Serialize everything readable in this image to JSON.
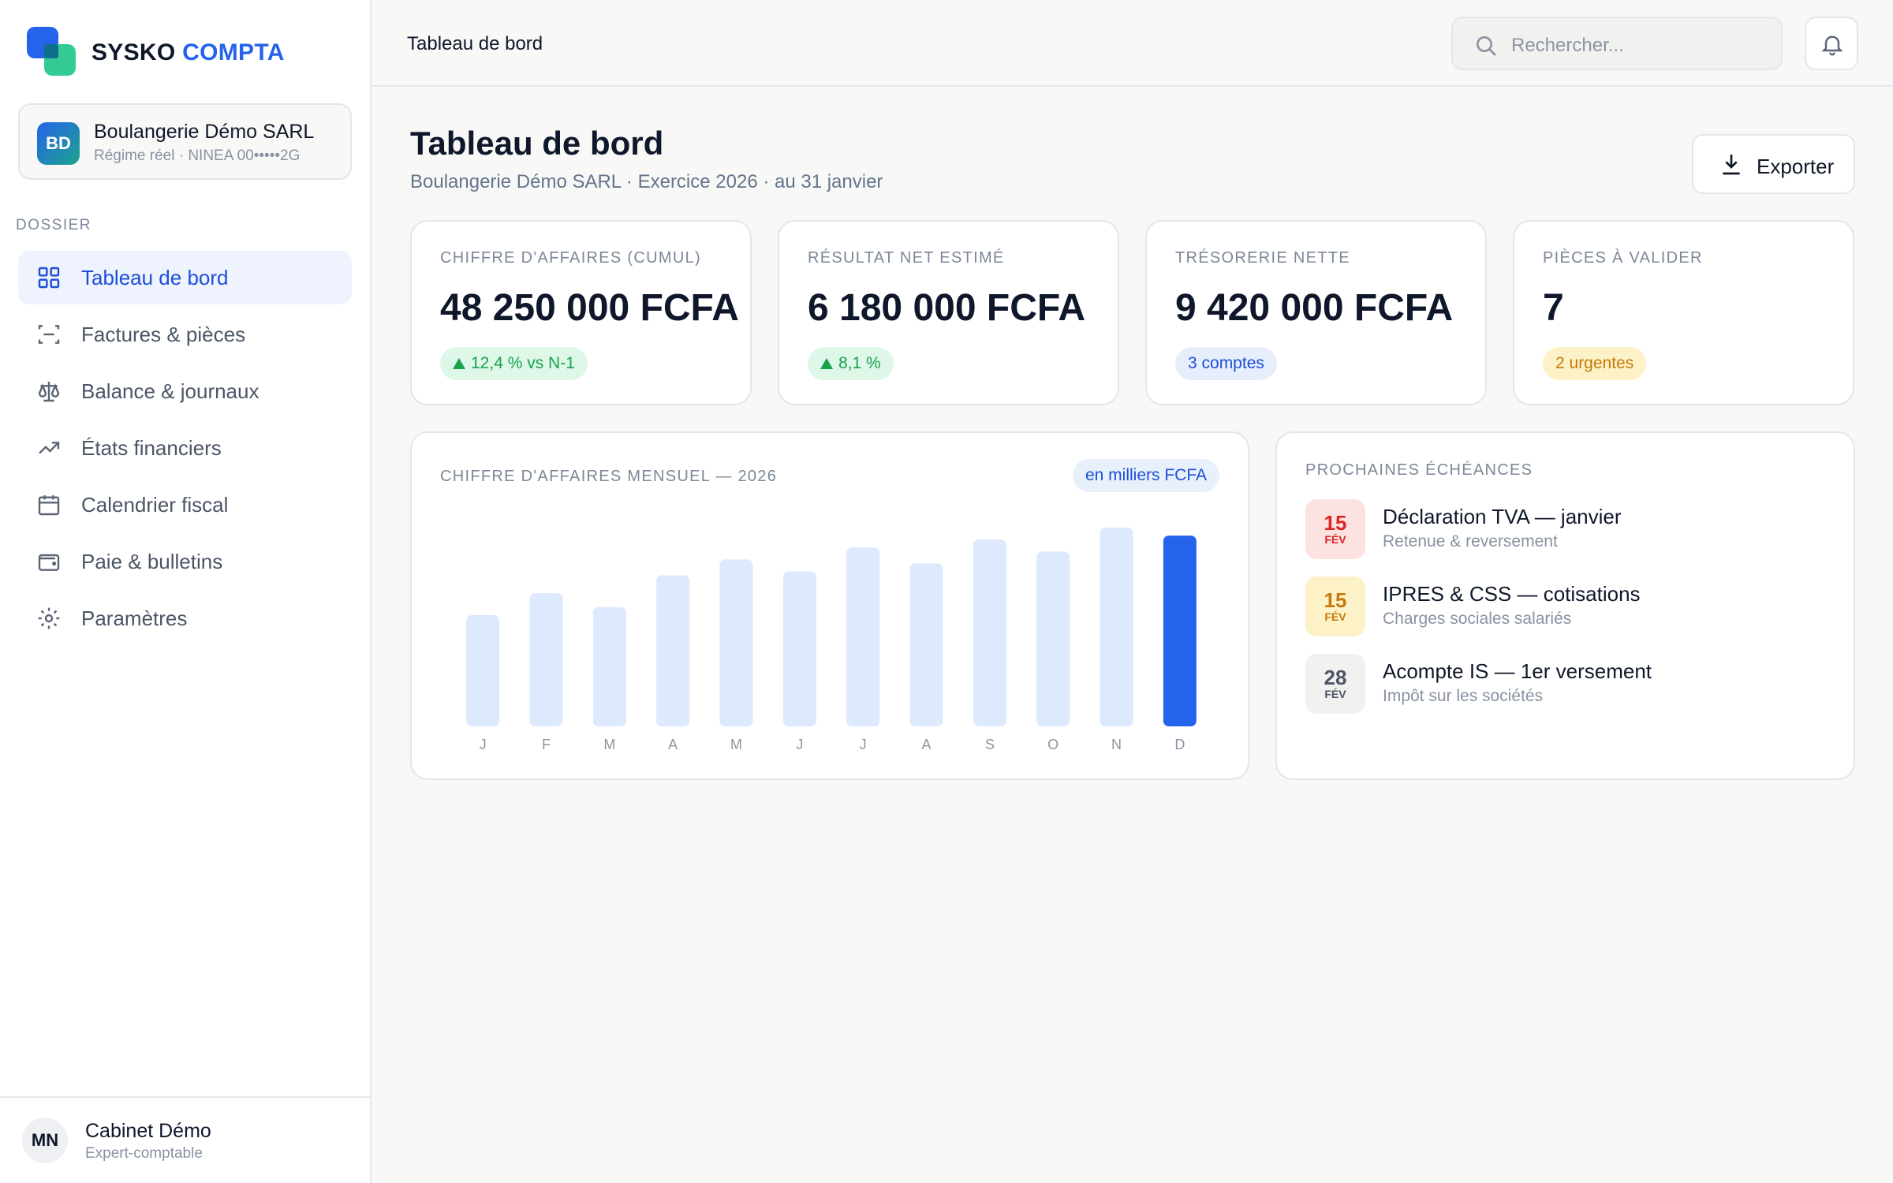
{
  "brand": {
    "part1": "SYSKO",
    "part2": "COMPTA"
  },
  "company": {
    "initials": "BD",
    "name": "Boulangerie Démo SARL",
    "details": "Régime réel · NINEA 00•••••2G"
  },
  "sidebar": {
    "section_label": "DOSSIER",
    "items": [
      {
        "label": "Tableau de bord",
        "icon": "grid-icon",
        "active": true
      },
      {
        "label": "Factures & pièces",
        "icon": "scan-icon"
      },
      {
        "label": "Balance & journaux",
        "icon": "scale-icon"
      },
      {
        "label": "États financiers",
        "icon": "trending-up-icon"
      },
      {
        "label": "Calendrier fiscal",
        "icon": "calendar-icon"
      },
      {
        "label": "Paie & bulletins",
        "icon": "wallet-icon"
      },
      {
        "label": "Paramètres",
        "icon": "gear-icon"
      }
    ]
  },
  "user": {
    "initials": "MN",
    "name": "Cabinet Démo",
    "role": "Expert-comptable"
  },
  "topbar": {
    "breadcrumb": "Tableau de bord",
    "search_placeholder": "Rechercher..."
  },
  "header": {
    "title": "Tableau de bord",
    "subtitle": "Boulangerie Démo SARL · Exercice 2026 · au 31 janvier",
    "export_label": "Exporter"
  },
  "kpis": [
    {
      "label": "CHIFFRE D'AFFAIRES (CUMUL)",
      "value": "48 250 000 FCFA",
      "badge": "12,4 % vs N-1",
      "badge_color": "#16a34a"
    },
    {
      "label": "RÉSULTAT NET ESTIMÉ",
      "value": "6 180 000 FCFA",
      "badge": "8,1 %",
      "badge_color": "#16a34a"
    },
    {
      "label": "TRÉSORERIE NETTE",
      "value": "9 420 000 FCFA",
      "badge": "3 comptes",
      "badge_color": "#1d4ed8"
    },
    {
      "label": "PIÈCES À VALIDER",
      "value": "7",
      "badge": "2 urgentes",
      "badge_color": "#c47a0a"
    }
  ],
  "chart": {
    "title": "CHIFFRE D'AFFAIRES MENSUEL — 2026",
    "unit": "en milliers FCFA"
  },
  "chart_data": {
    "type": "bar",
    "categories": [
      "J",
      "F",
      "M",
      "A",
      "M",
      "J",
      "J",
      "A",
      "S",
      "O",
      "N",
      "D"
    ],
    "values": [
      56,
      67,
      60,
      76,
      84,
      78,
      90,
      82,
      94,
      88,
      100,
      96
    ],
    "highlight_index": 11,
    "bar_color": "#dde9fd",
    "highlight_color": "#2563eb",
    "ylim": [
      0,
      100
    ],
    "grid": false,
    "xlabel": "",
    "ylabel": ""
  },
  "deadlines": {
    "title": "PROCHAINES ÉCHÉANCES",
    "items": [
      {
        "day": "15",
        "month": "FÉV",
        "title": "Déclaration TVA — janvier",
        "subtitle": "Retenue & reversement",
        "color": "#dc2626"
      },
      {
        "day": "15",
        "month": "FÉV",
        "title": "IPRES & CSS — cotisations",
        "subtitle": "Charges sociales salariés",
        "color": "#c47a0a"
      },
      {
        "day": "28",
        "month": "FÉV",
        "title": "Acompte IS — 1er versement",
        "subtitle": "Impôt sur les sociétés",
        "color": "#4b5566"
      }
    ]
  }
}
